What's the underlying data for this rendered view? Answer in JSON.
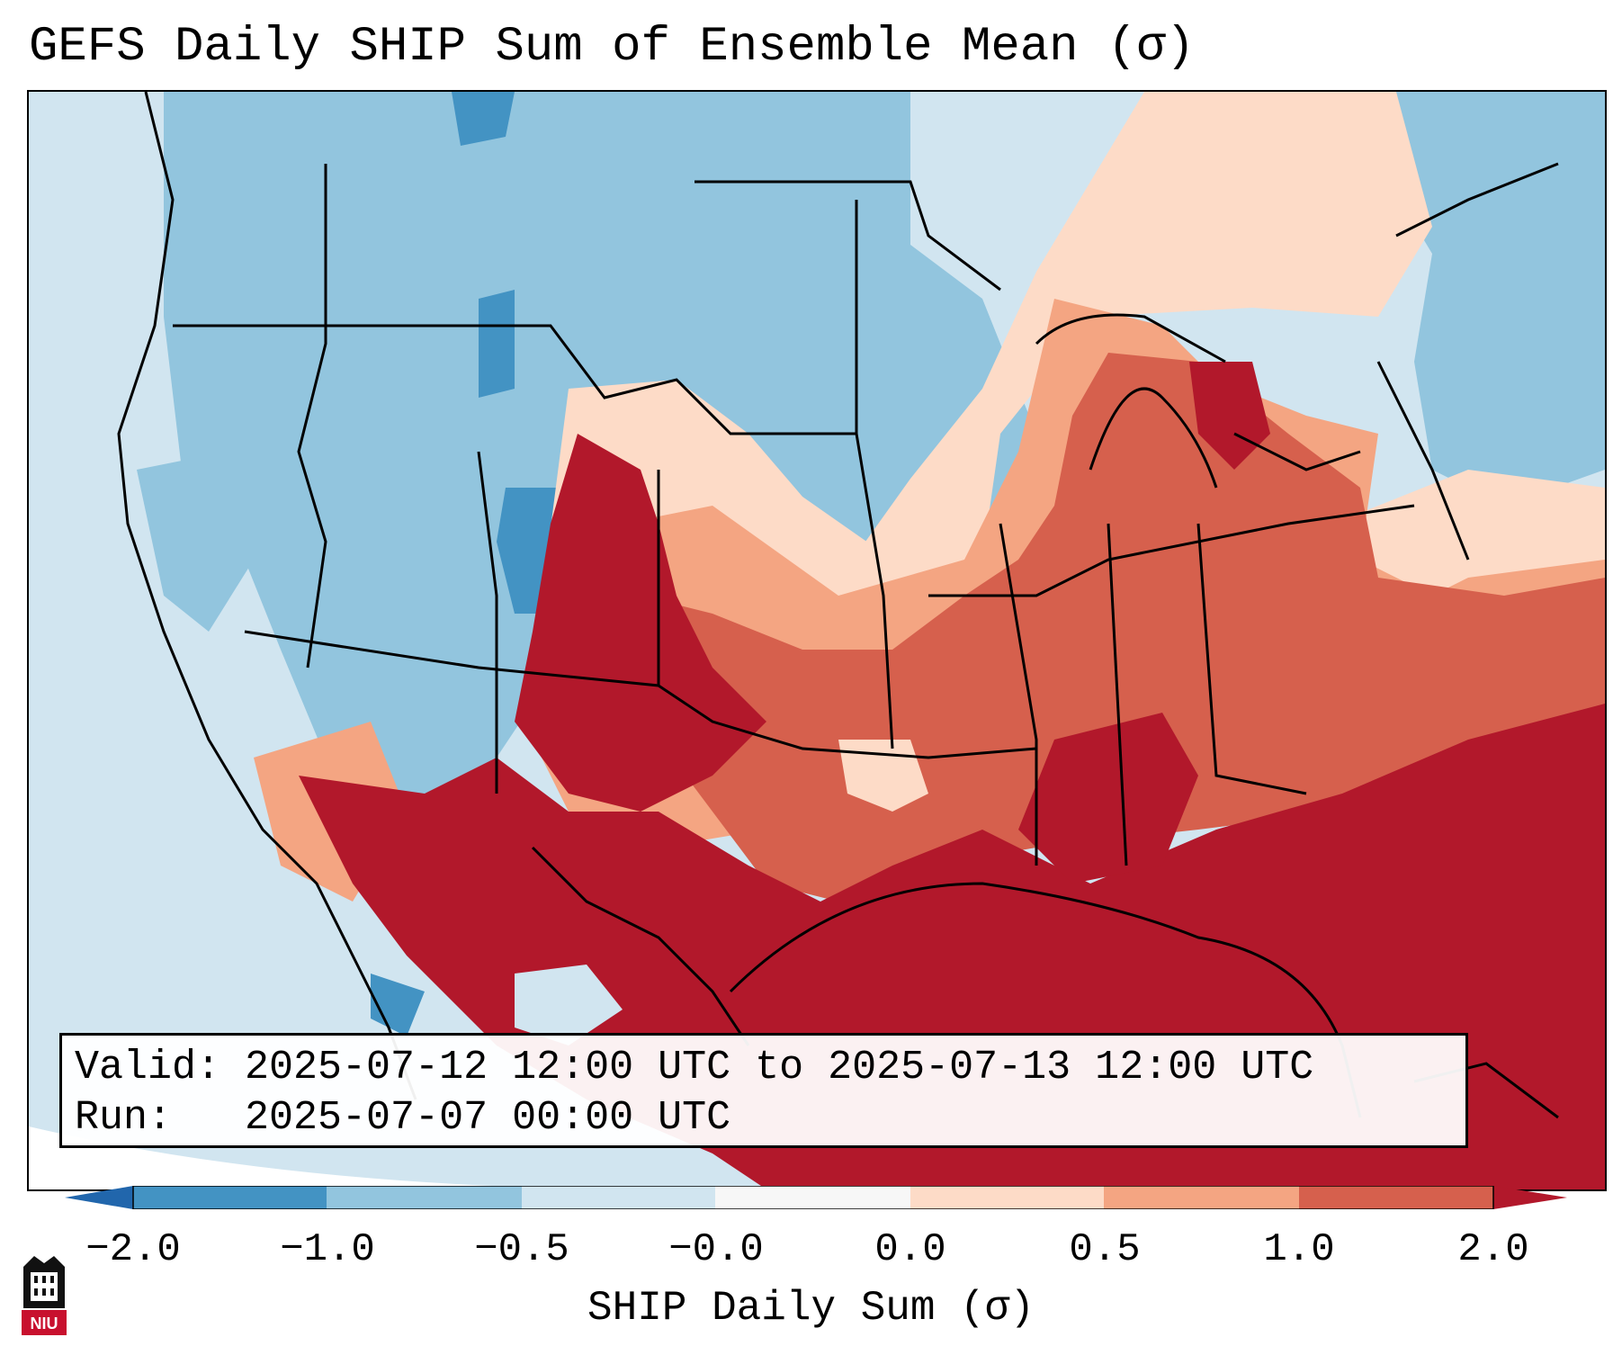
{
  "title": "GEFS Daily SHIP Sum of Ensemble Mean (σ)",
  "info": {
    "valid_line": "Valid: 2025-07-12 12:00 UTC to 2025-07-13 12:00 UTC",
    "run_line": "Run:   2025-07-07 00:00 UTC"
  },
  "colorbar": {
    "label": "SHIP Daily Sum (σ)",
    "ticks": [
      "−2.0",
      "−1.0",
      "−0.5",
      "−0.0",
      "0.0",
      "0.5",
      "1.0",
      "2.0"
    ],
    "colors": [
      "#4393c3",
      "#92c5de",
      "#d1e5f0",
      "#f7f7f7",
      "#fddbc7",
      "#f4a582",
      "#d6604d",
      "#b2182b"
    ],
    "extend_low_color": "#2166ac",
    "extend_high_color": "#b2182b"
  },
  "map": {
    "region": "Contiguous United States",
    "variable": "SHIP daily sum anomaly (σ)"
  },
  "logo": {
    "name": "NIU",
    "text": "NIU"
  }
}
